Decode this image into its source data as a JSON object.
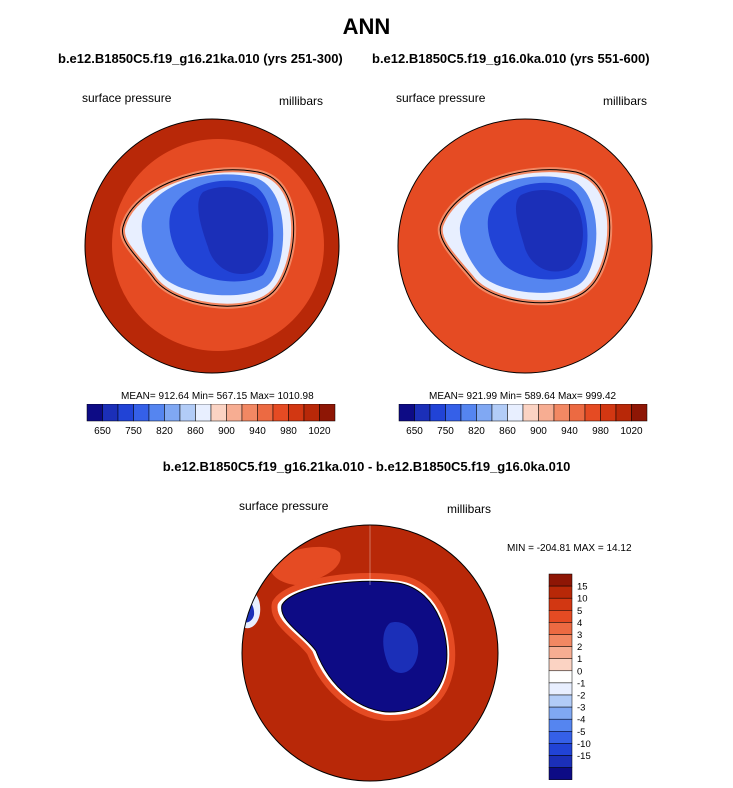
{
  "title": "ANN",
  "left_panel": {
    "title": "b.e12.B1850C5.f19_g16.21ka.010 (yrs 251-300)",
    "variable": "surface pressure",
    "units": "millibars",
    "stats": "MEAN= 912.64  Min= 567.15  Max= 1010.98"
  },
  "right_panel": {
    "title": "b.e12.B1850C5.f19_g16.0ka.010 (yrs 551-600)",
    "variable": "surface pressure",
    "units": "millibars",
    "stats": "MEAN= 921.99  Min= 589.64  Max= 999.42"
  },
  "diff_panel": {
    "title": "b.e12.B1850C5.f19_g16.21ka.010 - b.e12.B1850C5.f19_g16.0ka.010",
    "variable": "surface pressure",
    "units": "millibars",
    "stats": "MIN = -204.81 MAX =  14.12"
  },
  "abs_colorbar": {
    "colors": [
      "#0d0b85",
      "#1b2fb8",
      "#2143d6",
      "#3560e8",
      "#5585f0",
      "#80a8f3",
      "#b2ccf7",
      "#e8efff",
      "#fbd3c3",
      "#f7ad92",
      "#f28863",
      "#ec6a42",
      "#e54b23",
      "#d23712",
      "#b82808",
      "#8e1605"
    ],
    "tick_labels": [
      "650",
      "750",
      "820",
      "860",
      "900",
      "940",
      "980",
      "1020"
    ]
  },
  "diff_colorbar": {
    "colors": [
      "#8e1605",
      "#b82808",
      "#d23712",
      "#e54b23",
      "#ec6a42",
      "#f28863",
      "#f7ad92",
      "#fbd3c3",
      "#ffffff",
      "#e8efff",
      "#b2ccf7",
      "#80a8f3",
      "#5585f0",
      "#3560e8",
      "#2143d6",
      "#1b2fb8",
      "#0d0b85"
    ],
    "tick_labels": [
      "15",
      "10",
      "5",
      "4",
      "3",
      "2",
      "1",
      "0",
      "-1",
      "-2",
      "-3",
      "-4",
      "-5",
      "-10",
      "-15"
    ]
  }
}
